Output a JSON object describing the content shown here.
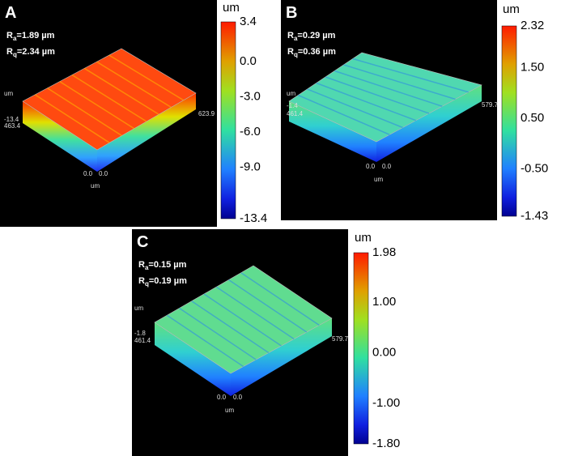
{
  "panels": [
    {
      "label": "A",
      "ra": {
        "symbol": "R",
        "subscript": "a",
        "text": "=1.89 µm"
      },
      "rq": {
        "symbol": "R",
        "subscript": "q",
        "text": "=2.34 µm"
      },
      "colorbar": {
        "unit": "um",
        "ticks": [
          "3.4",
          "0.0",
          "-3.0",
          "-6.0",
          "-9.0",
          "-13.4"
        ]
      },
      "axis_labels": [
        "um",
        "-13.4",
        "463.4",
        "623.9",
        "0.0",
        "0.0",
        "um"
      ]
    },
    {
      "label": "B",
      "ra": {
        "symbol": "R",
        "subscript": "a",
        "text": "=0.29 µm"
      },
      "rq": {
        "symbol": "R",
        "subscript": "q",
        "text": "=0.36 µm"
      },
      "colorbar": {
        "unit": "um",
        "ticks": [
          "2.32",
          "1.50",
          "0.50",
          "-0.50",
          "-1.43"
        ]
      },
      "axis_labels": [
        "um",
        "-1.4",
        "461.4",
        "579.7",
        "0.0",
        "0.0",
        "um"
      ]
    },
    {
      "label": "C",
      "ra": {
        "symbol": "R",
        "subscript": "a",
        "text": "=0.15 µm"
      },
      "rq": {
        "symbol": "R",
        "subscript": "q",
        "text": "=0.19 µm"
      },
      "colorbar": {
        "unit": "um",
        "ticks": [
          "1.98",
          "1.00",
          "0.00",
          "-1.00",
          "-1.80"
        ]
      },
      "axis_labels": [
        "um",
        "-1.8",
        "461.4",
        "579.7",
        "0.0",
        "0.0",
        "um"
      ]
    }
  ]
}
